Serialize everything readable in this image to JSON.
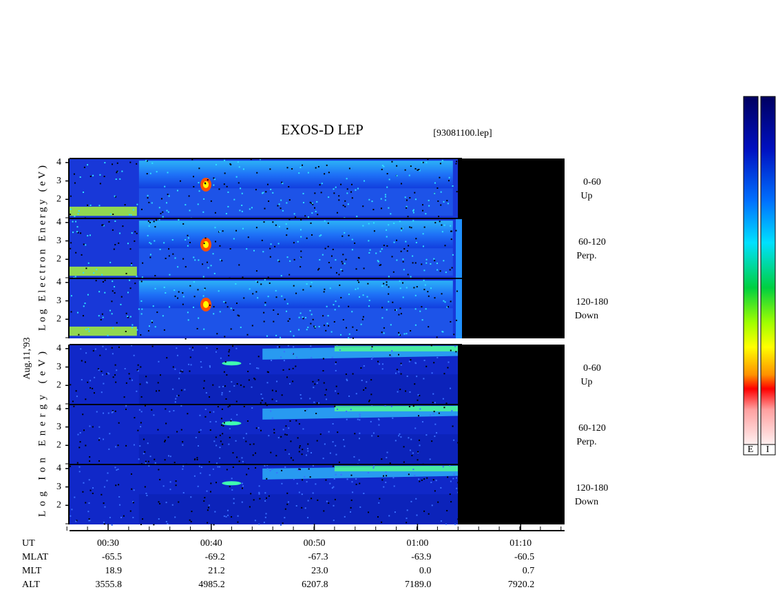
{
  "chart_data": {
    "type": "spectrogram",
    "title": "EXOS-D LEP",
    "file": "[93081100.lep]",
    "date": "Aug.11,'93",
    "ylabels": [
      "Log Electron Energy (eV)",
      "Log Ion Energy (eV)"
    ],
    "ylim": [
      0.96,
      4.22
    ],
    "yticks": [
      2,
      3,
      4
    ],
    "panels": [
      {
        "label": "0-60",
        "sublabel": "Up"
      },
      {
        "label": "60-120",
        "sublabel": "Perp."
      },
      {
        "label": "120-180",
        "sublabel": "Down"
      },
      {
        "label": "0-60",
        "sublabel": "Up"
      },
      {
        "label": "60-120",
        "sublabel": "Perp."
      },
      {
        "label": "120-180",
        "sublabel": "Down"
      }
    ],
    "ephemeris": [
      {
        "name": "UT",
        "values": [
          "00:30",
          "00:40",
          "00:50",
          "01:00",
          "01:10"
        ]
      },
      {
        "name": "MLAT",
        "values": [
          "-65.5",
          "-69.2",
          "-67.3",
          "-63.9",
          "-60.5"
        ]
      },
      {
        "name": "MLT",
        "values": [
          "18.9",
          "21.2",
          "23.0",
          "0.0",
          "0.7"
        ]
      },
      {
        "name": "ALT",
        "values": [
          "3555.8",
          "4985.2",
          "6207.8",
          "7189.0",
          "7920.2"
        ]
      }
    ],
    "colorbar_labels": [
      "E",
      "I"
    ]
  }
}
